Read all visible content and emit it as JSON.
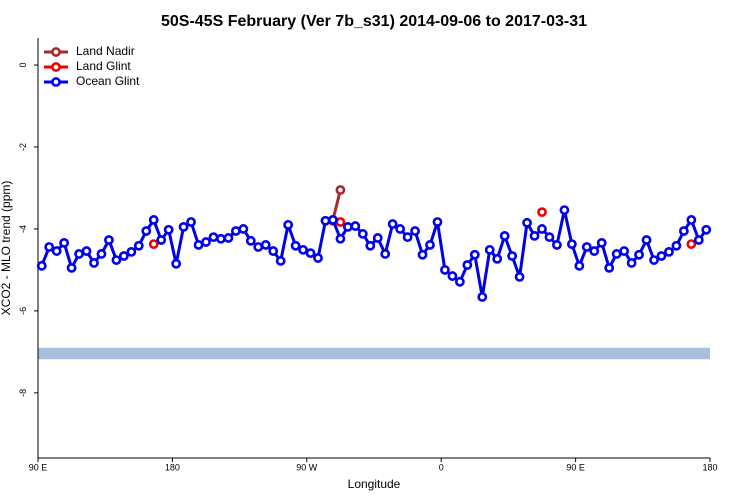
{
  "chart_data": {
    "type": "line",
    "title": "50S-45S February (Ver 7b_s31)   2014-09-06 to 2017-03-31",
    "x_label": "Longitude",
    "y_label": "XCO2 - MLO trend (ppm)",
    "xlim": [
      90,
      540
    ],
    "xticks": [
      {
        "value": 90,
        "label": "90 E"
      },
      180,
      {
        "value": 270,
        "label": "90 W"
      },
      {
        "value": 360,
        "label": "0"
      },
      {
        "value": 450,
        "label": "90 E"
      },
      {
        "value": 540,
        "label": "180"
      }
    ],
    "ylim": [
      -9.59,
      0.66
    ],
    "yticks": [
      0,
      -2,
      -4,
      -6,
      -8
    ],
    "legend": "top-left",
    "band": {
      "ylim": [
        -7.18,
        -6.9
      ],
      "color": "#a7bfdc"
    },
    "series": [
      {
        "name": "Land Nadir",
        "color": "#a52a2a",
        "x": [
          287.5,
          292.5
        ],
        "values": [
          -3.78,
          -3.05
        ]
      },
      {
        "name": "Land Glint",
        "color": "#ee0000",
        "x": [
          167.5,
          172.5,
          287.5,
          292.5,
          297.5,
          427.5,
          432.5,
          527.5
        ],
        "values": [
          -4.37,
          null,
          -3.8,
          -3.83,
          null,
          -3.59,
          null,
          -4.37
        ]
      },
      {
        "name": "Ocean Glint",
        "color": "#0000ee",
        "x": [
          92.5,
          97.5,
          102.5,
          107.5,
          112.5,
          117.5,
          122.5,
          127.5,
          132.5,
          137.5,
          142.5,
          147.5,
          152.5,
          157.5,
          162.5,
          167.5,
          172.5,
          177.5,
          182.5,
          187.5,
          192.5,
          197.5,
          202.5,
          207.5,
          212.5,
          217.5,
          222.5,
          227.5,
          232.5,
          237.5,
          242.5,
          247.5,
          252.5,
          257.5,
          262.5,
          267.5,
          272.5,
          277.5,
          282.5,
          287.5,
          292.5,
          297.5,
          302.5,
          307.5,
          312.5,
          317.5,
          322.5,
          327.5,
          332.5,
          337.5,
          342.5,
          347.5,
          352.5,
          357.5,
          362.5,
          367.5,
          372.5,
          377.5,
          382.5,
          387.5,
          392.5,
          397.5,
          402.5,
          407.5,
          412.5,
          417.5,
          422.5,
          427.5,
          432.5,
          437.5,
          442.5,
          447.5,
          452.5,
          457.5,
          462.5,
          467.5,
          472.5,
          477.5,
          482.5,
          487.5,
          492.5,
          497.5,
          502.5,
          507.5,
          512.5,
          517.5,
          522.5,
          527.5,
          532.5,
          537.5
        ],
        "values": [
          -4.9,
          -4.44,
          -4.54,
          -4.34,
          -4.95,
          -4.61,
          -4.54,
          -4.83,
          -4.61,
          -4.27,
          -4.76,
          -4.66,
          -4.56,
          -4.41,
          -4.05,
          -3.78,
          -4.27,
          -4.02,
          -4.85,
          -3.95,
          -3.83,
          -4.39,
          -4.32,
          -4.2,
          -4.24,
          -4.22,
          -4.05,
          -4.0,
          -4.29,
          -4.44,
          -4.39,
          -4.54,
          -4.78,
          -3.9,
          -4.41,
          -4.51,
          -4.59,
          -4.71,
          -3.8,
          -3.78,
          -4.24,
          -3.95,
          -3.93,
          -4.12,
          -4.41,
          -4.22,
          -4.61,
          -3.88,
          -4.0,
          -4.2,
          -4.05,
          -4.63,
          -4.39,
          -3.83,
          -5.0,
          -5.15,
          -5.29,
          -4.88,
          -4.63,
          -5.66,
          -4.51,
          -4.73,
          -4.17,
          -4.66,
          -5.17,
          -3.85,
          -4.17,
          -4.0,
          -4.2,
          -4.39,
          -3.54,
          -4.37,
          -4.9,
          -4.44,
          -4.54,
          -4.34,
          -4.95,
          -4.61,
          -4.54,
          -4.83,
          -4.63,
          -4.27,
          -4.76,
          -4.66,
          -4.56,
          -4.41,
          -4.05,
          -3.78,
          -4.27,
          -4.02
        ]
      }
    ]
  }
}
